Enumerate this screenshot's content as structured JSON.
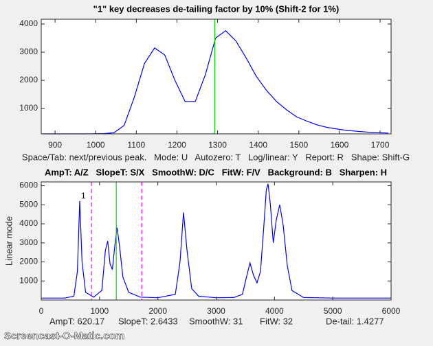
{
  "chart_data": [
    {
      "type": "line",
      "title": "\"1\" key decreases de-tailing factor by 10% (Shift-2 for 1%)",
      "x": [
        870,
        895,
        920,
        945,
        970,
        995,
        1020,
        1045,
        1070,
        1095,
        1120,
        1145,
        1170,
        1195,
        1220,
        1245,
        1270,
        1295,
        1320,
        1345,
        1370,
        1395,
        1420,
        1445,
        1470,
        1495,
        1520,
        1545,
        1570,
        1595,
        1620,
        1645,
        1670,
        1695,
        1720
      ],
      "series": [
        {
          "color": "#0000ff",
          "values": [
            100,
            100,
            100,
            100,
            100,
            105,
            110,
            140,
            400,
            1400,
            2600,
            3150,
            2900,
            2000,
            1250,
            1250,
            2200,
            3500,
            3760,
            3400,
            2800,
            2150,
            1650,
            1250,
            950,
            700,
            550,
            420,
            330,
            270,
            220,
            190,
            160,
            140,
            130
          ]
        }
      ],
      "xlim": [
        866,
        1727
      ],
      "ylim": [
        100,
        4170
      ],
      "xticks": [
        900,
        1000,
        1100,
        1200,
        1300,
        1400,
        1500,
        1600,
        1700
      ],
      "yticks": [
        1000,
        2000,
        3000,
        4000
      ],
      "vlines": [
        {
          "value": 1293,
          "color": "#00dd00",
          "style": "solid"
        }
      ]
    },
    {
      "type": "line",
      "ylabel": "Linear mode",
      "x": [
        0,
        400,
        560,
        620,
        660,
        700,
        760,
        900,
        1040,
        1100,
        1140,
        1180,
        1220,
        1260,
        1300,
        1340,
        1400,
        1500,
        1700,
        2000,
        2300,
        2380,
        2440,
        2500,
        2580,
        2700,
        3000,
        3300,
        3450,
        3520,
        3580,
        3640,
        3700,
        3760,
        3820,
        3860,
        3890,
        3930,
        3980,
        4030,
        4090,
        4150,
        4220,
        4300,
        4500,
        5000,
        5500,
        6000
      ],
      "series": [
        {
          "color": "#0000ff",
          "values": [
            100,
            100,
            200,
            1500,
            5200,
            2000,
            400,
            150,
            500,
            2600,
            3100,
            1900,
            1600,
            2800,
            3800,
            2900,
            1200,
            400,
            150,
            120,
            300,
            2000,
            4600,
            2600,
            600,
            200,
            120,
            130,
            300,
            1200,
            1950,
            1300,
            900,
            1500,
            4000,
            5800,
            6100,
            5000,
            3000,
            4200,
            5000,
            3900,
            1800,
            500,
            130,
            100,
            100,
            100
          ]
        }
      ],
      "xlim": [
        0,
        6000
      ],
      "ylim": [
        0,
        6200
      ],
      "xticks": [
        0,
        1000,
        2000,
        3000,
        4000,
        5000,
        6000
      ],
      "yticks": [
        1000,
        2000,
        3000,
        4000,
        5000,
        6000
      ],
      "vlines": [
        {
          "value": 862,
          "color": "#ff00ff",
          "style": "dashed"
        },
        {
          "value": 1724,
          "color": "#ff00ff",
          "style": "dashed"
        },
        {
          "value": 1287,
          "color": "#00dd00",
          "style": "solid"
        }
      ],
      "annotations": [
        {
          "text": "1",
          "x": 660,
          "y": 5450
        }
      ]
    }
  ],
  "controls": {
    "keys_line": "Space/Tab: next/previous peak.   Mode: U   Autozero: T   Log/linear: Y   Report: R   Shape: Shift-G",
    "hotkeys_line": "AmpT: A/Z   SlopeT: S/X   SmoothW: D/C   FitW: F/V   Background: B   Sharpen: H"
  },
  "status": [
    "AmpT: 620.17",
    "SlopeT: 2.6433",
    "SmoothW: 31",
    "FitW: 32",
    "De-tail: 1.4277"
  ],
  "watermark": "Screencast-O-Matic.com"
}
